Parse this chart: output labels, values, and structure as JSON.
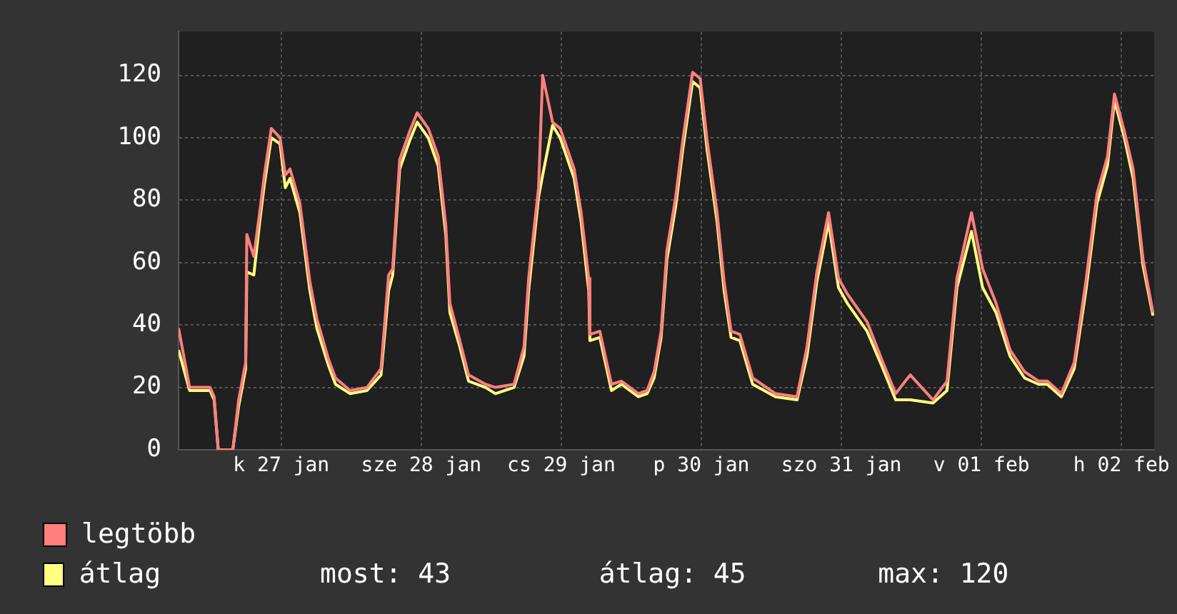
{
  "chart_data": {
    "type": "line",
    "x": [
      "--01-26T18:24",
      "--01-26T20:18",
      "--01-26T23:48",
      "--01-27T00:30",
      "--01-27T01:12",
      "--01-27T03:42",
      "--01-27T04:42",
      "--01-27T05:54",
      "--01-27T06:06",
      "--01-27T07:18",
      "--01-27T08:18",
      "--01-27T09:06",
      "--01-27T10:18",
      "--01-27T11:48",
      "--01-27T12:42",
      "--01-27T13:30",
      "--01-27T15:12",
      "--01-27T16:54",
      "--01-27T18:06",
      "--01-27T20:06",
      "--01-27T21:18",
      "--01-27T23:48",
      "--01-28T02:42",
      "--01-28T05:06",
      "--01-28T06:24",
      "--01-28T07:06",
      "--01-28T08:18",
      "--01-28T10:00",
      "--01-28T11:18",
      "--01-28T13:12",
      "--01-28T14:54",
      "--01-28T16:12",
      "--01-28T16:54",
      "--01-28T18:36",
      "--01-28T20:06",
      "--01-28T23:00",
      "--01-29T00:42",
      "--01-29T03:54",
      "--01-29T05:36",
      "--01-29T06:24",
      "--01-29T08:06",
      "--01-29T08:48",
      "--01-29T10:30",
      "--01-29T11:48",
      "--01-29T14:12",
      "--01-29T15:24",
      "--01-29T16:42",
      "--01-29T16:54",
      "--01-29T18:36",
      "--01-29T20:36",
      "--01-29T22:18",
      "--01-30T01:12",
      "--01-30T02:42",
      "--01-30T03:54",
      "--01-30T05:06",
      "--01-30T06:06",
      "--01-30T07:36",
      "--01-30T08:48",
      "--01-30T10:30",
      "--01-30T11:48",
      "--01-30T13:00",
      "--01-30T14:42",
      "--01-30T15:54",
      "--01-30T17:06",
      "--01-30T18:36",
      "--01-30T20:48",
      "--01-31T00:42",
      "--01-31T04:24",
      "--01-31T06:06",
      "--01-31T07:48",
      "--01-31T09:48",
      "--01-31T11:30",
      "--01-31T13:00",
      "--01-31T16:24",
      "--01-31T18:54",
      "--01-31T21:18",
      "--01-31T23:48",
      "--02-01T03:42",
      "--02-01T06:06",
      "--02-01T07:48",
      "--02-01T10:18",
      "--02-01T12:12",
      "--02-01T14:30",
      "--02-01T16:54",
      "--02-01T19:24",
      "--02-01T21:48",
      "--02-01T23:18",
      "--02-02T01:42",
      "--02-02T03:54",
      "--02-02T05:54",
      "--02-02T07:48",
      "--02-02T09:36",
      "--02-02T10:48",
      "--02-02T12:30",
      "--02-02T14:00",
      "--02-02T15:42",
      "--02-02T17:24"
    ],
    "series": [
      {
        "name": "legtöbb",
        "color": "#ff7f7f",
        "values": [
          39,
          20,
          20,
          17,
          0,
          0,
          16,
          28,
          69,
          62,
          76,
          88,
          103,
          100,
          88,
          90,
          79,
          54,
          42,
          29,
          23,
          19,
          20,
          26,
          56,
          58,
          93,
          102,
          108,
          103,
          94,
          72,
          47,
          35,
          24,
          21,
          20,
          21,
          33,
          55,
          84,
          120,
          105,
          103,
          90,
          76,
          55,
          37,
          38,
          21,
          22,
          18,
          19,
          25,
          38,
          64,
          81,
          99,
          121,
          119,
          99,
          76,
          54,
          38,
          37,
          23,
          18,
          17,
          33,
          57,
          76,
          55,
          50,
          41,
          29,
          18,
          24,
          16,
          22,
          55,
          76,
          58,
          47,
          32,
          25,
          22,
          22,
          18,
          28,
          54,
          82,
          94,
          114,
          102,
          90,
          61,
          44
        ]
      },
      {
        "name": "átlag",
        "color": "#ffff80",
        "values": [
          32,
          19,
          19,
          16,
          0,
          0,
          14,
          26,
          57,
          56,
          73,
          85,
          100,
          98,
          84,
          87,
          76,
          51,
          39,
          27,
          21,
          18,
          19,
          24,
          51,
          56,
          90,
          99,
          105,
          100,
          91,
          69,
          44,
          33,
          22,
          20,
          18,
          20,
          30,
          51,
          81,
          88,
          104,
          100,
          87,
          73,
          51,
          35,
          36,
          19,
          21,
          17,
          18,
          23,
          36,
          61,
          78,
          96,
          118,
          116,
          96,
          73,
          51,
          36,
          35,
          21,
          17,
          16,
          30,
          54,
          73,
          52,
          47,
          38,
          27,
          16,
          16,
          15,
          19,
          52,
          70,
          52,
          44,
          30,
          23,
          21,
          21,
          17,
          26,
          51,
          79,
          91,
          112,
          100,
          87,
          59,
          43
        ]
      }
    ],
    "xlim": [
      "--01-26T18:24",
      "--02-02T17:36"
    ],
    "xticks": [
      {
        "value": "--01-27T12:00",
        "label": "k 27 jan"
      },
      {
        "value": "--01-28T12:00",
        "label": "sze 28 jan"
      },
      {
        "value": "--01-29T12:00",
        "label": "cs 29 jan"
      },
      {
        "value": "--01-30T12:00",
        "label": "p 30 jan"
      },
      {
        "value": "--01-31T12:00",
        "label": "szo 31 jan"
      },
      {
        "value": "--02-01T12:00",
        "label": "v 01 feb"
      },
      {
        "value": "--02-02T12:00",
        "label": "h 02 feb"
      }
    ],
    "ylim": [
      0,
      134
    ],
    "yticks": [
      0,
      20,
      40,
      60,
      80,
      100,
      120
    ],
    "grid": true,
    "legend": "bottom",
    "annotations": [
      "most: 43",
      "átlag: 45",
      "max: 120"
    ]
  }
}
